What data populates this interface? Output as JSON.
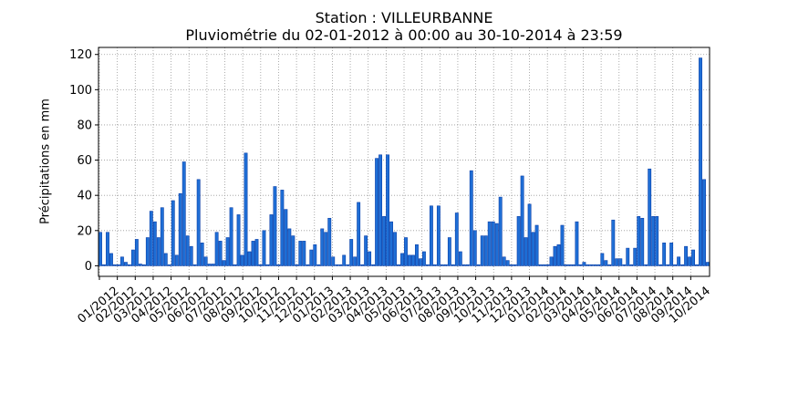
{
  "chart_data": {
    "type": "bar",
    "title": "Station : VILLEURBANNE",
    "subtitle": "Pluviométrie du 02-01-2012 à 00:00 au 30-10-2014 à 23:59",
    "xlabel": "",
    "ylabel": "Précipitations en mm",
    "ylim": [
      -6,
      124
    ],
    "yticks": [
      0,
      20,
      40,
      60,
      80,
      100,
      120
    ],
    "grid": true,
    "bar_color": "#1f6fd6",
    "bar_edge_color": "#0a3fa8",
    "grid_color": "#999999",
    "xtick_labels": [
      "01/2012",
      "02/2012",
      "03/2012",
      "04/2012",
      "05/2012",
      "06/2012",
      "07/2012",
      "08/2012",
      "09/2012",
      "10/2012",
      "11/2012",
      "12/2012",
      "01/2013",
      "02/2013",
      "03/2013",
      "04/2013",
      "05/2013",
      "06/2013",
      "07/2013",
      "08/2013",
      "09/2013",
      "10/2013",
      "11/2013",
      "12/2013",
      "01/2014",
      "02/2014",
      "03/2014",
      "04/2014",
      "05/2014",
      "06/2014",
      "07/2014",
      "08/2014",
      "09/2014",
      "10/2014"
    ],
    "values": [
      19,
      0,
      19,
      7,
      0,
      0,
      5,
      2,
      0,
      9,
      15,
      1,
      0,
      16,
      31,
      25,
      16,
      33,
      7,
      0,
      37,
      6,
      41,
      59,
      17,
      11,
      0,
      49,
      13,
      5,
      1,
      1,
      19,
      14,
      3,
      16,
      33,
      0,
      29,
      6,
      64,
      8,
      14,
      15,
      0,
      20,
      0,
      29,
      45,
      0,
      43,
      32,
      21,
      17,
      0,
      14,
      14,
      0,
      9,
      12,
      0,
      21,
      19,
      27,
      5,
      0,
      0,
      6,
      0,
      15,
      5,
      36,
      0,
      17,
      8,
      0,
      61,
      63,
      28,
      63,
      25,
      19,
      0,
      7,
      16,
      6,
      6,
      12,
      4,
      8,
      0,
      34,
      0,
      34,
      0,
      0,
      16,
      0,
      30,
      8,
      0,
      0,
      54,
      20,
      0,
      17,
      17,
      25,
      25,
      24,
      39,
      5,
      3,
      0,
      0,
      28,
      51,
      16,
      35,
      19,
      23,
      0,
      0,
      0,
      5,
      11,
      12,
      23,
      0,
      0,
      0,
      25,
      0,
      2,
      0,
      0,
      0,
      0,
      7,
      3,
      0,
      26,
      4,
      4,
      0,
      10,
      0,
      10,
      28,
      27,
      0,
      55,
      28,
      28,
      0,
      13,
      0,
      13,
      0,
      5,
      0,
      11,
      5,
      9,
      0,
      118,
      49,
      2
    ]
  }
}
